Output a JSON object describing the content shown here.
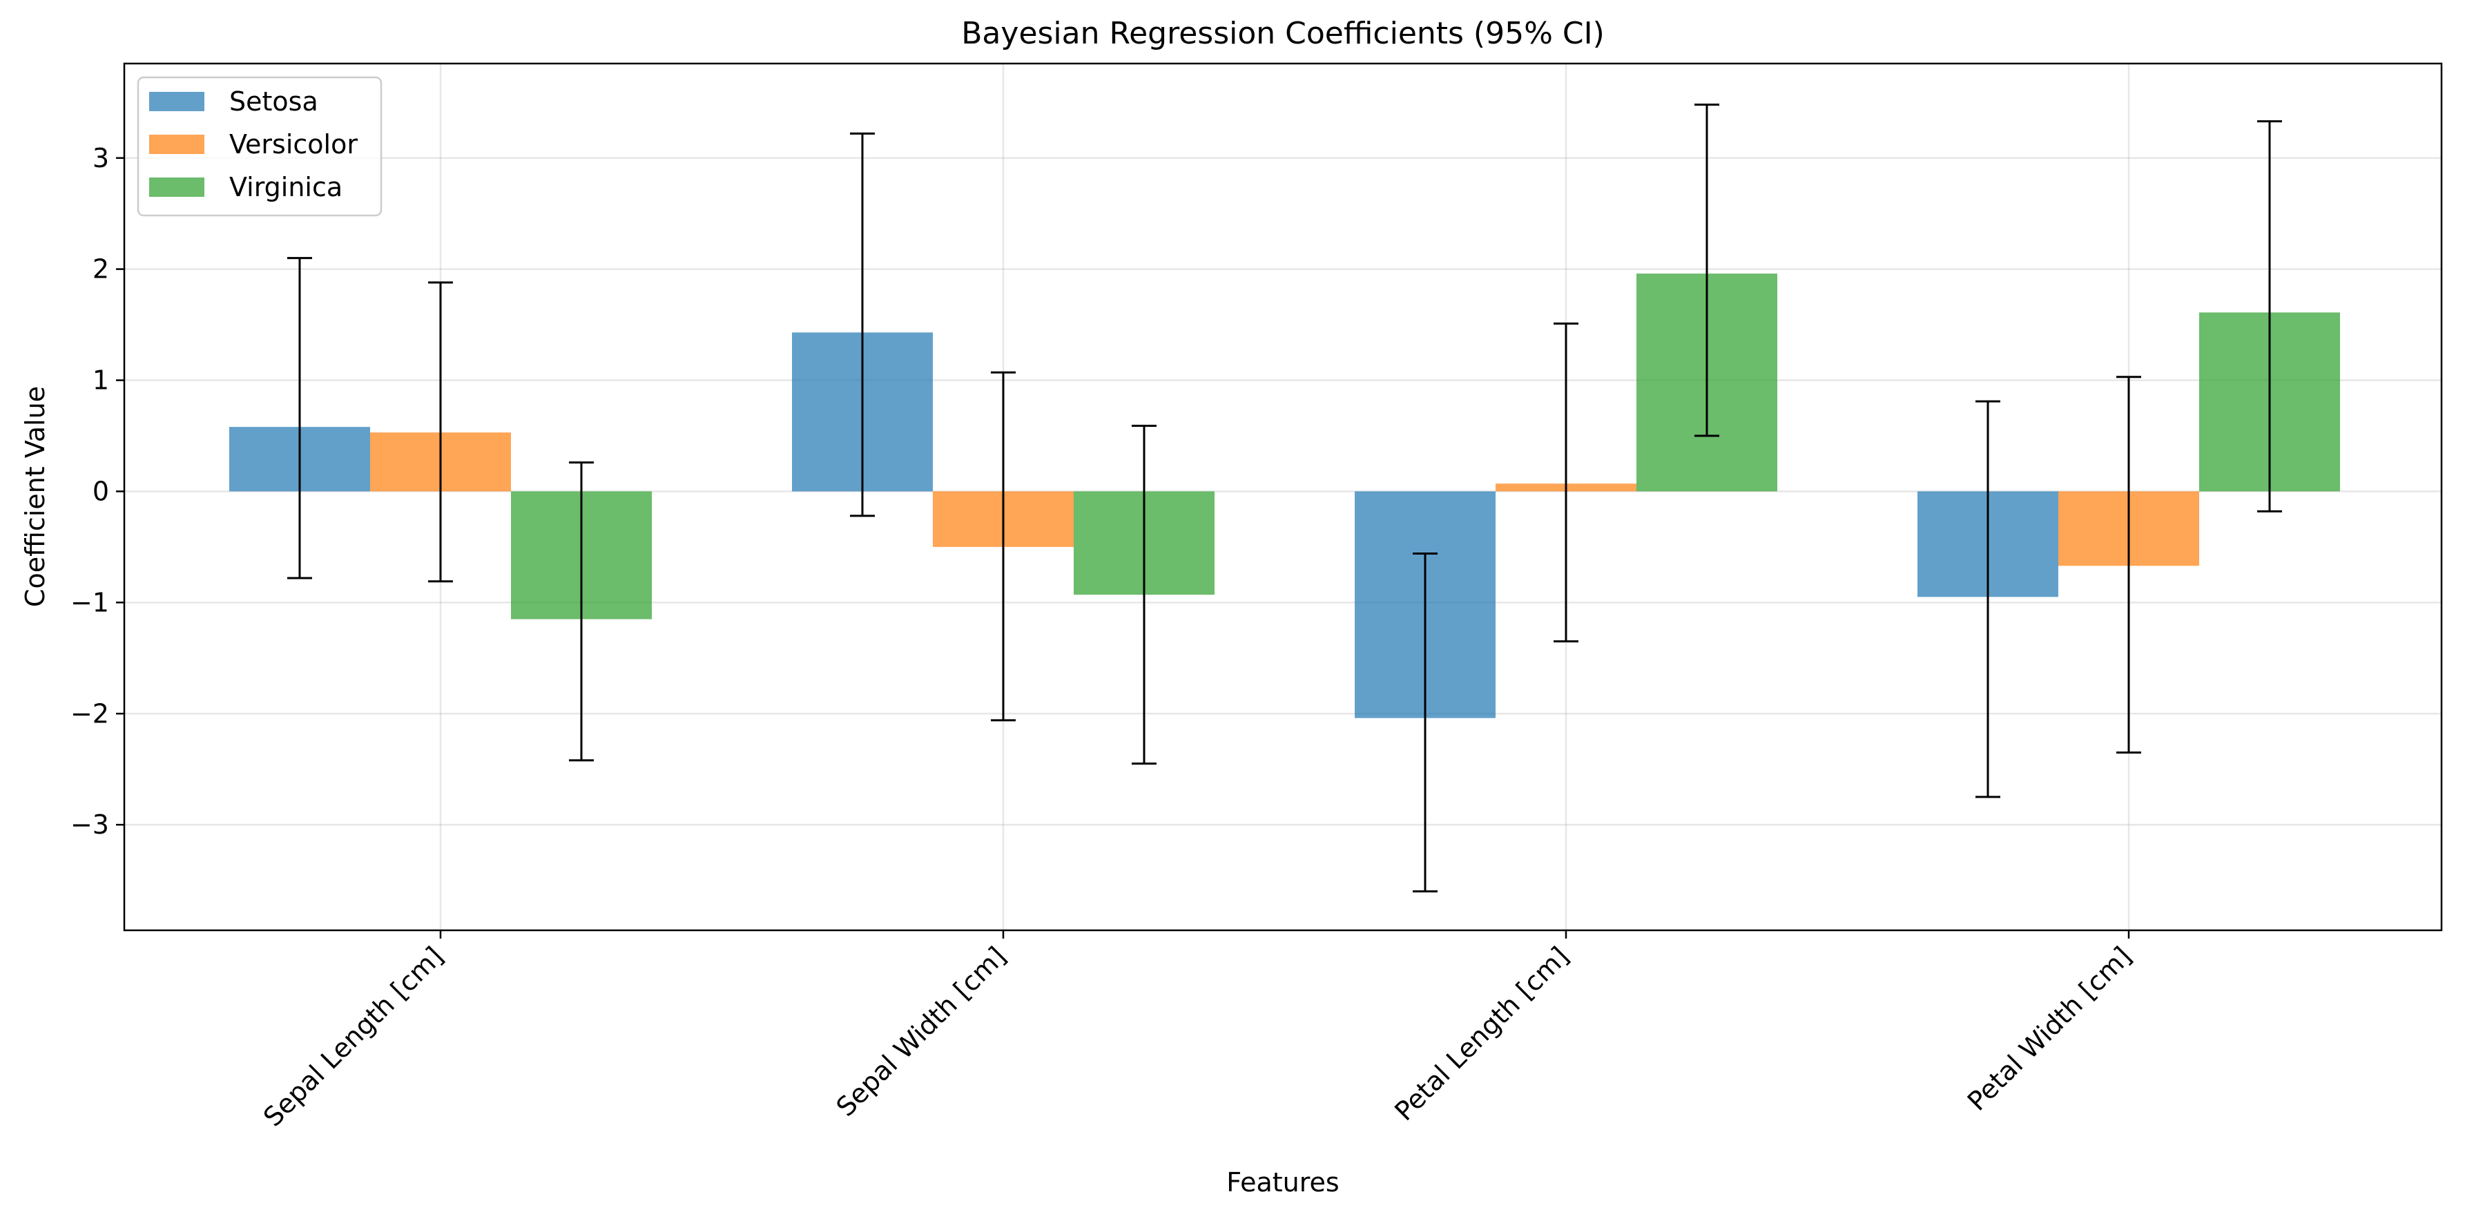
{
  "chart_data": {
    "type": "bar",
    "title": "Bayesian Regression Coefficients (95% CI)",
    "xlabel": "Features",
    "ylabel": "Coefficient Value",
    "categories": [
      "Sepal Length [cm]",
      "Sepal Width [cm]",
      "Petal Length [cm]",
      "Petal Width [cm]"
    ],
    "ylim": [
      -3.95,
      3.85
    ],
    "yticks": [
      -3,
      -2,
      -1,
      0,
      1,
      2,
      3
    ],
    "ytick_labels": [
      "−3",
      "−2",
      "−1",
      "0",
      "1",
      "2",
      "3"
    ],
    "grid": true,
    "legend_position": "top-left",
    "error_bars": "95% CI",
    "series": [
      {
        "name": "Setosa",
        "color": "#1f77b4",
        "values": [
          0.58,
          1.43,
          -2.04,
          -0.95
        ],
        "ci_low": [
          -0.78,
          -0.22,
          -3.6,
          -2.75
        ],
        "ci_high": [
          2.1,
          3.22,
          -0.56,
          0.81
        ]
      },
      {
        "name": "Versicolor",
        "color": "#ff7f0e",
        "values": [
          0.53,
          -0.5,
          0.07,
          -0.67
        ],
        "ci_low": [
          -0.81,
          -2.06,
          -1.35,
          -2.35
        ],
        "ci_high": [
          1.88,
          1.07,
          1.51,
          1.03
        ]
      },
      {
        "name": "Virginica",
        "color": "#2ca02c",
        "values": [
          -1.15,
          -0.93,
          1.96,
          1.61
        ],
        "ci_low": [
          -2.42,
          -2.45,
          0.5,
          -0.18
        ],
        "ci_high": [
          0.26,
          0.59,
          3.48,
          3.33
        ]
      }
    ]
  }
}
